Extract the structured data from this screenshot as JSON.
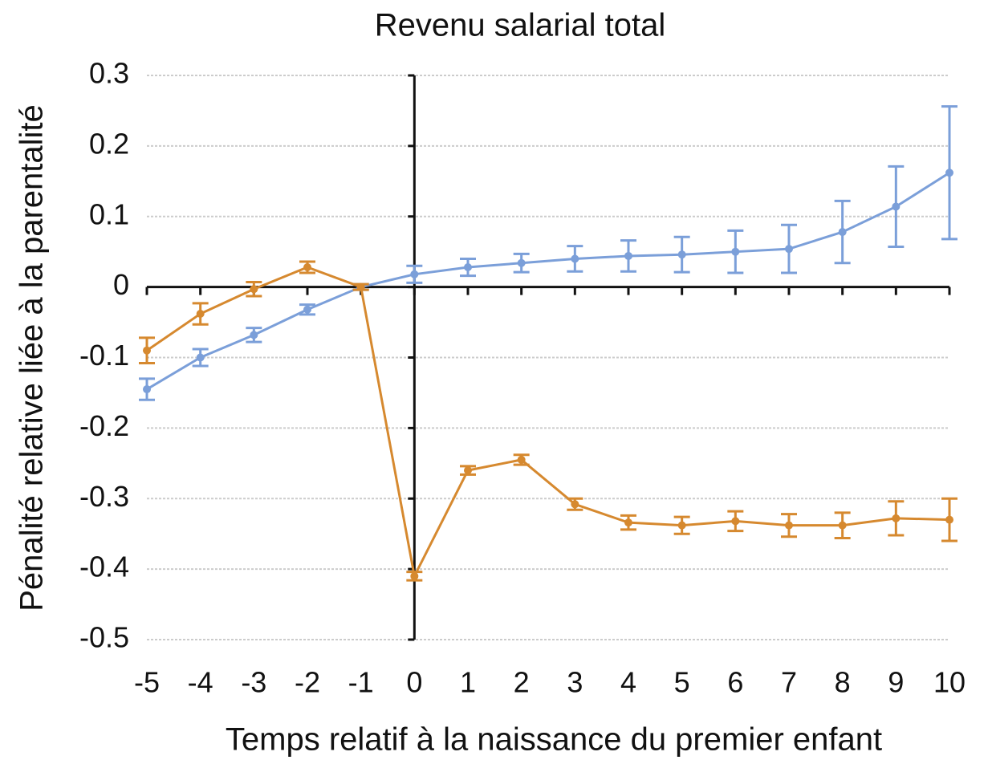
{
  "chart_data": {
    "type": "line",
    "title": "Revenu salarial total",
    "xlabel": "Temps relatif à la naissance du premier enfant",
    "ylabel": "Pénalité relative liée à la parentalité",
    "x": [
      -5,
      -4,
      -3,
      -2,
      -1,
      0,
      1,
      2,
      3,
      4,
      5,
      6,
      7,
      8,
      9,
      10
    ],
    "series": [
      {
        "color": "#7b9fd9",
        "values": [
          -0.145,
          -0.1,
          -0.068,
          -0.032,
          0,
          0.018,
          0.028,
          0.034,
          0.04,
          0.044,
          0.046,
          0.05,
          0.054,
          0.078,
          0.114,
          0.162
        ],
        "errors": [
          0.015,
          0.012,
          0.01,
          0.007,
          0.004,
          0.012,
          0.012,
          0.013,
          0.018,
          0.022,
          0.025,
          0.03,
          0.034,
          0.044,
          0.057,
          0.094
        ]
      },
      {
        "color": "#d6892f",
        "values": [
          -0.09,
          -0.038,
          -0.003,
          0.028,
          0,
          -0.41,
          -0.26,
          -0.245,
          -0.308,
          -0.334,
          -0.338,
          -0.332,
          -0.338,
          -0.338,
          -0.328,
          -0.33
        ],
        "errors": [
          0.018,
          0.015,
          0.01,
          0.008,
          0.004,
          0.006,
          0.006,
          0.007,
          0.008,
          0.01,
          0.012,
          0.014,
          0.016,
          0.018,
          0.024,
          0.03
        ]
      }
    ],
    "xlim": [
      -5,
      10
    ],
    "xticks": [
      -5,
      -4,
      -3,
      -2,
      -1,
      0,
      1,
      2,
      3,
      4,
      5,
      6,
      7,
      8,
      9,
      10
    ],
    "ylim": [
      -0.5,
      0.3
    ],
    "yticks": [
      0.3,
      0.2,
      0.1,
      0,
      -0.1,
      -0.2,
      -0.3,
      -0.4,
      -0.5
    ],
    "grid": true
  }
}
